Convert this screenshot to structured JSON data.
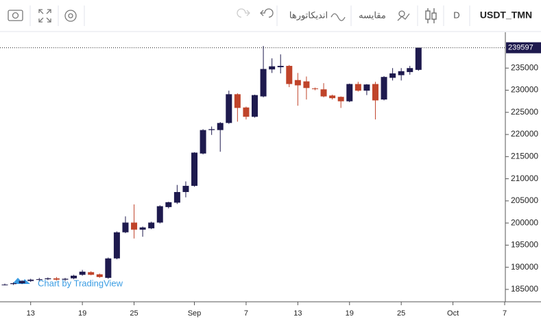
{
  "chart_data": {
    "type": "candlestick",
    "title": "USDT_TMN",
    "interval": "D",
    "compare_label": "مقایسه",
    "indicators_label": "اندیکاتورها",
    "watermark": "Chart by TradingView",
    "up_color": "#1e1a4e",
    "down_color": "#c0442a",
    "x": [
      "08-10",
      "08-11",
      "08-12",
      "08-13",
      "08-14",
      "08-15",
      "08-16",
      "08-17",
      "08-18",
      "08-19",
      "08-20",
      "08-21",
      "08-22",
      "08-23",
      "08-24",
      "08-25",
      "08-26",
      "08-27",
      "08-28",
      "08-29",
      "08-30",
      "08-31",
      "09-01",
      "09-02",
      "09-03",
      "09-04",
      "09-05",
      "09-06",
      "09-07",
      "09-08",
      "09-09",
      "09-10",
      "09-11",
      "09-12",
      "09-13",
      "09-14",
      "09-15",
      "09-16",
      "09-17",
      "09-18",
      "09-19",
      "09-20",
      "09-21",
      "09-22",
      "09-23",
      "09-24",
      "09-25",
      "09-26",
      "09-27"
    ],
    "open": [
      186000,
      186200,
      186400,
      186900,
      187200,
      187300,
      187500,
      187200,
      187500,
      188300,
      188900,
      188400,
      187600,
      192000,
      197900,
      200100,
      198500,
      198800,
      200100,
      203600,
      204600,
      207000,
      208400,
      215700,
      221000,
      221000,
      222600,
      229100,
      226100,
      224000,
      228600,
      234700,
      235200,
      235500,
      232300,
      232000,
      230400,
      230200,
      228800,
      228500,
      227500,
      231400,
      229900,
      231400,
      227900,
      232800,
      233400,
      234100,
      234600
    ],
    "high": [
      186300,
      186600,
      187100,
      187400,
      187600,
      187700,
      187800,
      187600,
      188300,
      189400,
      189100,
      188600,
      192200,
      198100,
      201500,
      204200,
      199200,
      200300,
      204000,
      204800,
      208600,
      209400,
      216000,
      221200,
      221800,
      222800,
      229900,
      229300,
      226300,
      229000,
      240000,
      237200,
      238100,
      235700,
      233900,
      233100,
      230600,
      231600,
      229000,
      228600,
      231500,
      231900,
      231400,
      231900,
      233200,
      235000,
      235000,
      235500,
      239600
    ],
    "low": [
      185900,
      186000,
      186200,
      186700,
      186900,
      187100,
      187000,
      186900,
      187300,
      188100,
      188200,
      187600,
      187400,
      191800,
      197700,
      196500,
      196900,
      198600,
      199900,
      203300,
      204300,
      205800,
      208200,
      215500,
      219900,
      216100,
      222400,
      222900,
      223400,
      223800,
      228400,
      233900,
      233800,
      230700,
      226500,
      227900,
      230000,
      228400,
      227900,
      226000,
      227300,
      229700,
      228900,
      223400,
      227700,
      232200,
      232200,
      233500,
      234400
    ],
    "close": [
      186100,
      186400,
      186900,
      187200,
      187300,
      187500,
      187200,
      187400,
      188100,
      189000,
      188300,
      187800,
      192000,
      197900,
      200100,
      198500,
      199000,
      200100,
      203800,
      204700,
      207000,
      208400,
      215900,
      221000,
      221200,
      222600,
      229100,
      226000,
      224000,
      228900,
      234800,
      235400,
      235500,
      231400,
      231100,
      230500,
      230300,
      228600,
      228200,
      227500,
      231400,
      229900,
      231300,
      227700,
      233000,
      233800,
      234300,
      235000,
      239597
    ],
    "last_price": 239597,
    "xlim": [
      "08-10",
      "10-07"
    ],
    "xticks": [
      {
        "value": "08-13",
        "label": "13"
      },
      {
        "value": "08-19",
        "label": "19"
      },
      {
        "value": "08-25",
        "label": "25"
      },
      {
        "value": "09-01",
        "label": "Sep"
      },
      {
        "value": "09-07",
        "label": "7"
      },
      {
        "value": "09-13",
        "label": "13"
      },
      {
        "value": "09-19",
        "label": "19"
      },
      {
        "value": "09-25",
        "label": "25"
      },
      {
        "value": "10-01",
        "label": "Oct"
      },
      {
        "value": "10-07",
        "label": "7"
      }
    ],
    "ylim": [
      182200,
      243100
    ],
    "yticks": [
      185000,
      190000,
      195000,
      200000,
      205000,
      210000,
      215000,
      220000,
      225000,
      230000,
      235000
    ]
  }
}
